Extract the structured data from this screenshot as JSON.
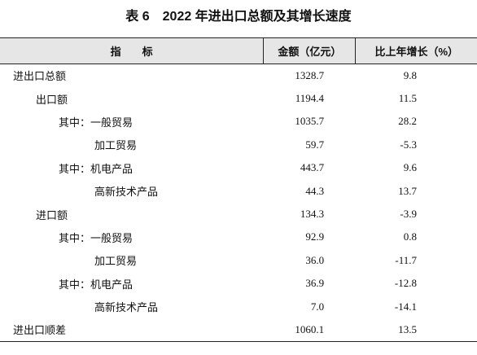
{
  "header": {
    "title": "表 6　2022 年进出口总额及其增长速度"
  },
  "table": {
    "columns": [
      "指　　标",
      "金额（亿元）",
      "比上年增长（%）"
    ],
    "rows": [
      [
        "进出口总额",
        "1328.7",
        "9.8"
      ],
      [
        "出口额",
        "1194.4",
        "11.5"
      ],
      [
        "其中：一般贸易",
        "1035.7",
        "28.2"
      ],
      [
        "加工贸易",
        "59.7",
        "-5.3"
      ],
      [
        "其中：机电产品",
        "443.7",
        "9.6"
      ],
      [
        "高新技术产品",
        "44.3",
        "13.7"
      ],
      [
        "进口额",
        "134.3",
        "-3.9"
      ],
      [
        "其中：一般贸易",
        "92.9",
        "0.8"
      ],
      [
        "加工贸易",
        "36.0",
        "-11.7"
      ],
      [
        "其中：机电产品",
        "36.9",
        "-12.8"
      ],
      [
        "高新技术产品",
        "7.0",
        "-14.1"
      ],
      [
        "进出口顺差",
        "1060.1",
        "13.5"
      ]
    ]
  }
}
